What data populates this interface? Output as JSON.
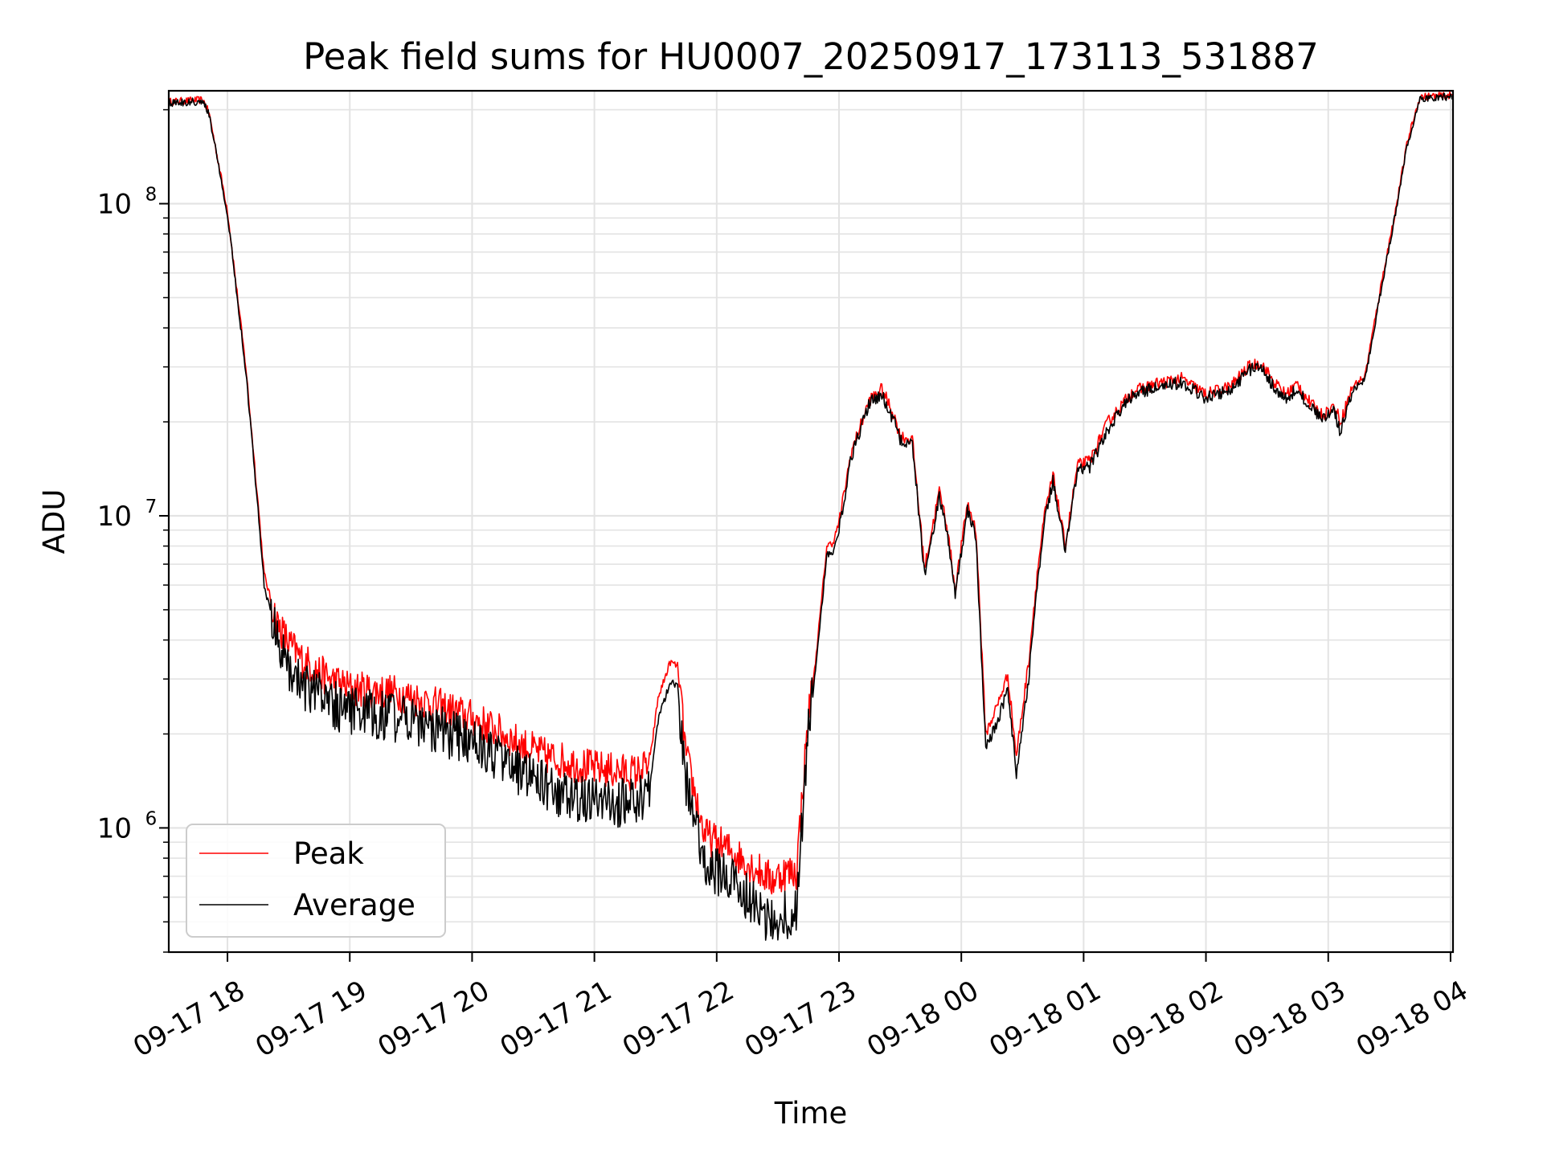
{
  "chart_data": {
    "type": "line",
    "title": "Peak field sums for HU0007_20250917_173113_531887",
    "xlabel": "Time",
    "ylabel": "ADU",
    "yscale": "log",
    "ylim": [
      400000,
      230000000
    ],
    "xlim_hours": [
      17.52,
      4.02
    ],
    "grid": true,
    "grid_minor": true,
    "legend_loc": "lower left",
    "x_ticks": [
      {
        "hour": 18,
        "label": "09-17 18"
      },
      {
        "hour": 19,
        "label": "09-17 19"
      },
      {
        "hour": 20,
        "label": "09-17 20"
      },
      {
        "hour": 21,
        "label": "09-17 21"
      },
      {
        "hour": 22,
        "label": "09-17 22"
      },
      {
        "hour": 23,
        "label": "09-17 23"
      },
      {
        "hour": 24,
        "label": "09-18 00"
      },
      {
        "hour": 25,
        "label": "09-18 01"
      },
      {
        "hour": 26,
        "label": "09-18 02"
      },
      {
        "hour": 27,
        "label": "09-18 03"
      },
      {
        "hour": 28,
        "label": "09-18 04"
      }
    ],
    "y_ticks": [
      {
        "value": 1000000,
        "base": "10",
        "exp": "6"
      },
      {
        "value": 10000000,
        "base": "10",
        "exp": "7"
      },
      {
        "value": 100000000,
        "base": "10",
        "exp": "8"
      }
    ],
    "series": [
      {
        "name": "Peak",
        "color": "#ff0000",
        "x": [
          17.52,
          17.6,
          17.8,
          17.85,
          18.0,
          18.15,
          18.25,
          18.3,
          18.4,
          18.5,
          18.6,
          18.8,
          19.0,
          19.2,
          19.4,
          19.6,
          19.8,
          20.0,
          20.2,
          20.4,
          20.6,
          20.8,
          21.0,
          21.2,
          21.35,
          21.45,
          21.52,
          21.62,
          21.68,
          21.75,
          21.9,
          22.1,
          22.3,
          22.45,
          22.55,
          22.65,
          22.75,
          22.8,
          22.85,
          22.9,
          22.95,
          23.0,
          23.1,
          23.25,
          23.35,
          23.45,
          23.5,
          23.6,
          23.7,
          23.82,
          23.88,
          23.95,
          24.05,
          24.12,
          24.2,
          24.3,
          24.38,
          24.45,
          24.55,
          24.62,
          24.68,
          24.75,
          24.85,
          24.95,
          25.05,
          25.2,
          25.4,
          25.6,
          25.8,
          26.0,
          26.2,
          26.35,
          26.45,
          26.55,
          26.65,
          26.75,
          26.85,
          26.95,
          27.05,
          27.1,
          27.2,
          27.3,
          27.45,
          27.55,
          27.65,
          27.75,
          27.85,
          28.0,
          28.02
        ],
        "y": [
          212000000,
          213000000,
          215000000,
          195000000,
          95000000,
          30000000,
          11000000,
          6500000,
          4600000,
          3900000,
          3500000,
          3050000,
          2800000,
          2750000,
          2700000,
          2550000,
          2400000,
          2250000,
          2050000,
          1850000,
          1700000,
          1620000,
          1550000,
          1520000,
          1500000,
          1600000,
          2600000,
          3400000,
          3300000,
          1700000,
          950000,
          850000,
          750000,
          680000,
          720000,
          720000,
          2300000,
          3200000,
          5000000,
          8000000,
          8200000,
          9500000,
          16000000,
          23500000,
          25500000,
          21000000,
          18000000,
          17500000,
          6800000,
          12000000,
          9500000,
          5800000,
          11000000,
          9000000,
          2000000,
          2500000,
          3100000,
          1700000,
          3400000,
          6500000,
          10000000,
          13500000,
          8000000,
          14500000,
          15000000,
          20000000,
          25000000,
          26500000,
          27500000,
          24500000,
          26000000,
          30000000,
          31000000,
          27000000,
          24500000,
          26500000,
          23000000,
          21000000,
          22500000,
          20000000,
          26000000,
          28000000,
          60000000,
          95000000,
          160000000,
          220000000,
          221000000,
          222000000,
          222000000
        ]
      },
      {
        "name": "Average",
        "color": "#000000",
        "x": [
          17.52,
          17.6,
          17.8,
          17.85,
          18.0,
          18.15,
          18.25,
          18.3,
          18.4,
          18.5,
          18.6,
          18.8,
          19.0,
          19.2,
          19.4,
          19.6,
          19.8,
          20.0,
          20.2,
          20.4,
          20.6,
          20.8,
          21.0,
          21.2,
          21.35,
          21.45,
          21.52,
          21.62,
          21.68,
          21.75,
          21.9,
          22.1,
          22.3,
          22.45,
          22.55,
          22.65,
          22.75,
          22.8,
          22.85,
          22.9,
          22.95,
          23.0,
          23.1,
          23.25,
          23.35,
          23.45,
          23.5,
          23.6,
          23.7,
          23.82,
          23.88,
          23.95,
          24.05,
          24.12,
          24.2,
          24.3,
          24.38,
          24.45,
          24.55,
          24.62,
          24.68,
          24.75,
          24.85,
          24.95,
          25.05,
          25.2,
          25.4,
          25.6,
          25.8,
          26.0,
          26.2,
          26.35,
          26.45,
          26.55,
          26.65,
          26.75,
          26.85,
          26.95,
          27.05,
          27.1,
          27.2,
          27.3,
          27.45,
          27.55,
          27.65,
          27.75,
          27.85,
          28.0,
          28.02
        ],
        "y": [
          210000000,
          211000000,
          213000000,
          193000000,
          93000000,
          29000000,
          10500000,
          6000000,
          4100000,
          3300000,
          2900000,
          2550000,
          2350000,
          2300000,
          2250000,
          2150000,
          2000000,
          1850000,
          1700000,
          1500000,
          1350000,
          1250000,
          1220000,
          1200000,
          1220000,
          1300000,
          2200000,
          2950000,
          2850000,
          1400000,
          780000,
          680000,
          580000,
          500000,
          520000,
          560000,
          2000000,
          3000000,
          4700000,
          7500000,
          7700000,
          9000000,
          15500000,
          23000000,
          24500000,
          20000000,
          17500000,
          17000000,
          6500000,
          11500000,
          9000000,
          5500000,
          10500000,
          8500000,
          1800000,
          2200000,
          2800000,
          1500000,
          3000000,
          6000000,
          9500000,
          13000000,
          7700000,
          14000000,
          14300000,
          19000000,
          24500000,
          25800000,
          26800000,
          23800000,
          25300000,
          29200000,
          30300000,
          26000000,
          23800000,
          25500000,
          22300000,
          20200000,
          21700000,
          18500000,
          25500000,
          27300000,
          58000000,
          93000000,
          157000000,
          218000000,
          219000000,
          220000000,
          220000000
        ]
      }
    ]
  }
}
